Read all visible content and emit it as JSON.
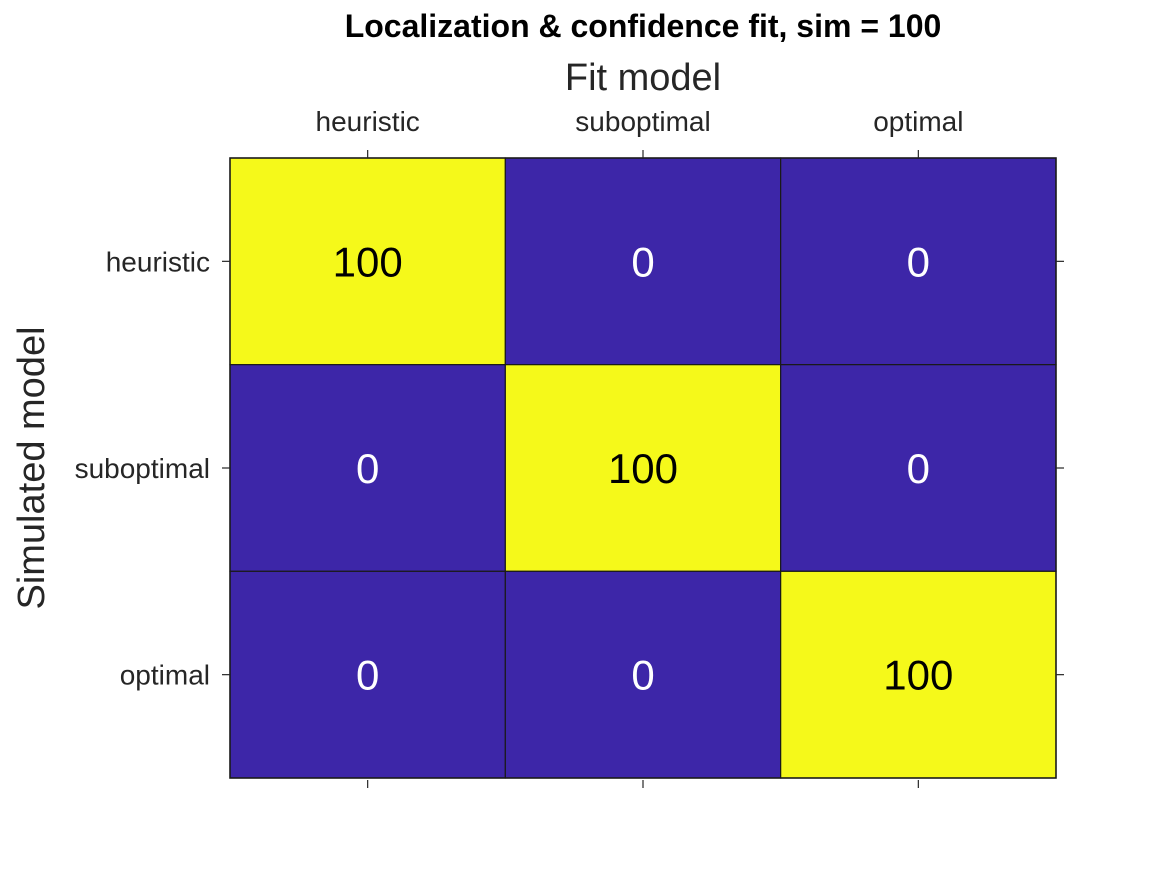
{
  "chart_data": {
    "type": "heatmap",
    "title": "Localization & confidence fit, sim = 100",
    "xlabel": "Fit model",
    "ylabel": "Simulated model",
    "x_categories": [
      "heuristic",
      "suboptimal",
      "optimal"
    ],
    "y_categories": [
      "heuristic",
      "suboptimal",
      "optimal"
    ],
    "x_axis_location": "top",
    "values": [
      [
        100,
        0,
        0
      ],
      [
        0,
        100,
        0
      ],
      [
        0,
        0,
        100
      ]
    ],
    "value_range": [
      0,
      100
    ],
    "colormap": {
      "low": "#3d26a8",
      "high": "#f5f91a"
    },
    "label_colors": {
      "on_low": "#ffffff",
      "on_high": "#000000"
    },
    "grid": true,
    "colorbar": false
  }
}
